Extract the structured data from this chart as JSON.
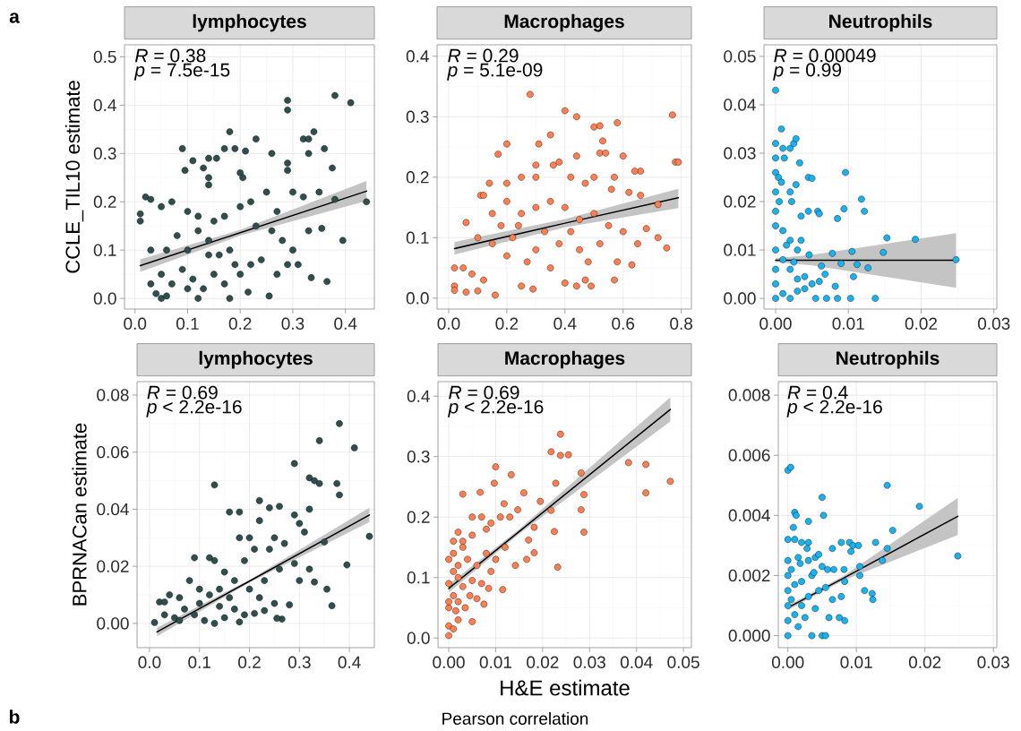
{
  "chart_data": [
    {
      "type": "scatter",
      "title": "lymphocytes",
      "ylabel": "CCLE_TIL10 estimate",
      "xlim": [
        -0.02,
        0.455
      ],
      "ylim": [
        -0.022,
        0.525
      ],
      "xticks": [
        {
          "value": 0,
          "label": "0.0"
        },
        {
          "value": 0.1,
          "label": "0.1"
        },
        {
          "value": 0.2,
          "label": "0.2"
        },
        {
          "value": 0.3,
          "label": "0.3"
        },
        {
          "value": 0.4,
          "label": "0.4"
        }
      ],
      "yticks": [
        {
          "value": 0,
          "label": "0.0"
        },
        {
          "value": 0.1,
          "label": "0.1"
        },
        {
          "value": 0.2,
          "label": "0.2"
        },
        {
          "value": 0.3,
          "label": "0.3"
        },
        {
          "value": 0.4,
          "label": "0.4"
        },
        {
          "value": 0.5,
          "label": "0.5"
        }
      ],
      "grid": true,
      "annotations": [
        "*R* = 0.38",
        "*p* = 7.5e-15",
        "a"
      ],
      "series": [
        {
          "type": "scatter",
          "color": "#2f4f4f",
          "marker": "circle",
          "x": [
            0.38,
            0.29,
            0.29,
            0.41,
            0.18,
            0.34,
            0.32,
            0.33,
            0.23,
            0.09,
            0.17,
            0.19,
            0.21,
            0.36,
            0.33,
            0.26,
            0.11,
            0.14,
            0.155,
            0.29,
            0.13,
            0.375,
            0.29,
            0.095,
            0.2,
            0.205,
            0.14,
            0.14,
            0.44,
            0.38,
            0.395,
            0.355,
            0.365,
            0.335,
            0.255,
            0.215,
            0.18,
            0.12,
            0.05,
            0.02,
            0.03,
            0.01,
            0.01,
            0.05,
            0.07,
            0.1,
            0.12,
            0.15,
            0.17,
            0.2,
            0.22,
            0.25,
            0.27,
            0.3,
            0.32,
            0.33,
            0.3,
            0.28,
            0.26,
            0.24,
            0.22,
            0.2,
            0.18,
            0.16,
            0.14,
            0.12,
            0.1,
            0.08,
            0.06,
            0.03,
            0.03,
            0.05,
            0.07,
            0.09,
            0.11,
            0.13,
            0.15,
            0.17,
            0.19,
            0.27,
            0.29,
            0.31,
            0.04,
            0.06,
            0.1,
            0.14,
            0.23,
            0.35
          ],
          "values": [
            0.42,
            0.41,
            0.39,
            0.405,
            0.345,
            0.345,
            0.33,
            0.33,
            0.33,
            0.31,
            0.31,
            0.31,
            0.305,
            0.31,
            0.3,
            0.3,
            0.285,
            0.29,
            0.29,
            0.28,
            0.27,
            0.27,
            0.265,
            0.265,
            0.26,
            0.25,
            0.25,
            0.235,
            0.2,
            0.205,
            0.12,
            0.145,
            0.035,
            0.043,
            0.005,
            0.013,
            0.0,
            0.0,
            0.0,
            0.21,
            0.205,
            0.175,
            0.16,
            0.19,
            0.2,
            0.18,
            0.17,
            0.16,
            0.17,
            0.19,
            0.2,
            0.22,
            0.18,
            0.22,
            0.21,
            0.14,
            0.1,
            0.12,
            0.14,
            0.08,
            0.07,
            0.05,
            0.1,
            0.09,
            0.12,
            0.14,
            0.1,
            0.13,
            0.1,
            0.1,
            0.03,
            0.05,
            0.03,
            0.06,
            0.04,
            0.02,
            0.05,
            0.03,
            0.07,
            0.05,
            0.07,
            0.07,
            0.01,
            0.005,
            0.02,
            0.09,
            0.15,
            0.22
          ]
        },
        {
          "type": "line",
          "color": "#000000",
          "line_style": "solid",
          "marker": "none",
          "x": [
            0.01,
            0.2,
            0.44
          ],
          "values": [
            0.068,
            0.136,
            0.222
          ],
          "lower": [
            0.055,
            0.13,
            0.202
          ],
          "upper": [
            0.081,
            0.142,
            0.243
          ]
        }
      ]
    },
    {
      "type": "scatter",
      "title": "Macrophages",
      "xlim": [
        -0.04,
        0.835
      ],
      "ylim": [
        -0.018,
        0.419
      ],
      "xticks": [
        {
          "value": 0,
          "label": "0.0"
        },
        {
          "value": 0.2,
          "label": "0.2"
        },
        {
          "value": 0.4,
          "label": "0.4"
        },
        {
          "value": 0.6,
          "label": "0.6"
        },
        {
          "value": 0.8,
          "label": "0.8"
        }
      ],
      "yticks": [
        {
          "value": 0,
          "label": "0.0"
        },
        {
          "value": 0.1,
          "label": "0.1"
        },
        {
          "value": 0.2,
          "label": "0.2"
        },
        {
          "value": 0.3,
          "label": "0.3"
        },
        {
          "value": 0.4,
          "label": "0.4"
        }
      ],
      "grid": true,
      "annotations": [
        "*R* = 0.29",
        "*p* = 5.1e-09"
      ],
      "series": [
        {
          "type": "scatter",
          "color": "#ff7f50",
          "marker": "circle",
          "x": [
            0.28,
            0.4,
            0.44,
            0.77,
            0.5,
            0.52,
            0.58,
            0.2,
            0.31,
            0.35,
            0.53,
            0.52,
            0.54,
            0.6,
            0.17,
            0.44,
            0.78,
            0.79,
            0.66,
            0.64,
            0.3,
            0.36,
            0.38,
            0.14,
            0.11,
            0.12,
            0.2,
            0.25,
            0.3,
            0.42,
            0.47,
            0.5,
            0.57,
            0.56,
            0.62,
            0.66,
            0.72,
            0.06,
            0.15,
            0.2,
            0.25,
            0.3,
            0.35,
            0.4,
            0.45,
            0.5,
            0.55,
            0.6,
            0.68,
            0.72,
            0.75,
            0.65,
            0.58,
            0.05,
            0.02,
            0.02,
            0.02,
            0.06,
            0.1,
            0.16,
            0.08,
            0.12,
            0.1,
            0.15,
            0.2,
            0.22,
            0.27,
            0.3,
            0.35,
            0.38,
            0.4,
            0.44,
            0.47,
            0.49,
            0.45,
            0.25,
            0.29,
            0.33,
            0.42,
            0.48,
            0.52,
            0.57,
            0.63,
            0.24,
            0.18
          ],
          "values": [
            0.337,
            0.31,
            0.3,
            0.303,
            0.283,
            0.285,
            0.29,
            0.255,
            0.255,
            0.27,
            0.26,
            0.24,
            0.24,
            0.235,
            0.238,
            0.235,
            0.225,
            0.225,
            0.21,
            0.21,
            0.22,
            0.22,
            0.225,
            0.19,
            0.17,
            0.17,
            0.19,
            0.2,
            0.2,
            0.2,
            0.19,
            0.2,
            0.2,
            0.18,
            0.175,
            0.17,
            0.155,
            0.125,
            0.14,
            0.16,
            0.14,
            0.15,
            0.16,
            0.15,
            0.13,
            0.14,
            0.12,
            0.11,
            0.115,
            0.1,
            0.083,
            0.09,
            0.06,
            0.05,
            0.05,
            0.02,
            0.013,
            0.01,
            0.012,
            0.005,
            0.04,
            0.03,
            0.1,
            0.09,
            0.07,
            0.1,
            0.06,
            0.08,
            0.05,
            0.09,
            0.025,
            0.02,
            0.03,
            0.02,
            0.08,
            0.02,
            0.015,
            0.11,
            0.11,
            0.06,
            0.09,
            0.03,
            0.055,
            0.12,
            0.12
          ]
        },
        {
          "type": "line",
          "color": "#000000",
          "line_style": "solid",
          "marker": "none",
          "x": [
            0.02,
            0.4,
            0.79
          ],
          "values": [
            0.082,
            0.124,
            0.166
          ],
          "lower": [
            0.072,
            0.117,
            0.149
          ],
          "upper": [
            0.093,
            0.131,
            0.181
          ]
        }
      ]
    },
    {
      "type": "scatter",
      "title": "Neutrophils",
      "xlim": [
        -0.0016,
        0.0304
      ],
      "ylim": [
        -0.0022,
        0.0524
      ],
      "xticks": [
        {
          "value": 0,
          "label": "0.00"
        },
        {
          "value": 0.01,
          "label": "0.01"
        },
        {
          "value": 0.02,
          "label": "0.02"
        },
        {
          "value": 0.03,
          "label": "0.03"
        }
      ],
      "yticks": [
        {
          "value": 0,
          "label": "0.00"
        },
        {
          "value": 0.01,
          "label": "0.01"
        },
        {
          "value": 0.02,
          "label": "0.02"
        },
        {
          "value": 0.03,
          "label": "0.03"
        },
        {
          "value": 0.04,
          "label": "0.04"
        },
        {
          "value": 0.05,
          "label": "0.05"
        }
      ],
      "grid": true,
      "annotations": [
        "*R* = 0.00049",
        "*p* = 0.99"
      ],
      "series": [
        {
          "type": "scatter",
          "color": "#1ab2ee",
          "marker": "circle",
          "x": [
            0.0,
            0.0008,
            0.0,
            0.001,
            0.002,
            0.0025,
            0.0028,
            0.0,
            0.0012,
            0.0,
            0.0004,
            0.0008,
            0.0033,
            0.0045,
            0.005,
            0.0096,
            0.0028,
            0.002,
            0.0,
            0.0005,
            0.0022,
            0.0,
            0.0035,
            0.0045,
            0.0058,
            0.006,
            0.0085,
            0.0094,
            0.0118,
            0.0122,
            0.0153,
            0.0192,
            0.0148,
            0.0105,
            0.0078,
            0.0063,
            0.009,
            0.0112,
            0.0127,
            0.0107,
            0.0068,
            0.0,
            0.001,
            0.002,
            0.003,
            0.0046,
            0.0,
            0.0,
            0.0,
            0.0,
            0.001,
            0.002,
            0.003,
            0.004,
            0.005,
            0.0055,
            0.007,
            0.0085,
            0.0082,
            0.0103,
            0.0137,
            0.0248,
            0.001,
            0.002,
            0.003,
            0.004,
            0.006,
            0.0015,
            0.0025,
            0.0035
          ],
          "values": [
            0.043,
            0.035,
            0.032,
            0.031,
            0.031,
            0.032,
            0.033,
            0.029,
            0.029,
            0.026,
            0.025,
            0.024,
            0.028,
            0.025,
            0.0248,
            0.026,
            0.0235,
            0.022,
            0.022,
            0.02,
            0.02,
            0.018,
            0.017,
            0.018,
            0.018,
            0.0175,
            0.0165,
            0.0185,
            0.0205,
            0.018,
            0.0125,
            0.0122,
            0.0095,
            0.0097,
            0.0093,
            0.0067,
            0.0072,
            0.007,
            0.0063,
            0.0045,
            0.005,
            0.015,
            0.014,
            0.012,
            0.01,
            0.009,
            0.01,
            0.006,
            0.003,
            0.0,
            0.008,
            0.006,
            0.004,
            0.002,
            0.003,
            0.0,
            0.0,
            0.0,
            0.0025,
            0.0,
            0.0,
            0.008,
            0.001,
            0.0,
            0.0015,
            0.0045,
            0.0035,
            0.011,
            0.0075,
            0.012
          ]
        },
        {
          "type": "line",
          "color": "#000000",
          "line_style": "solid",
          "marker": "none",
          "x": [
            0.0,
            0.005,
            0.0248
          ],
          "values": [
            0.0079,
            0.0079,
            0.0079
          ],
          "lower": [
            0.0075,
            0.0068,
            0.0022
          ],
          "upper": [
            0.0083,
            0.009,
            0.0135
          ]
        }
      ]
    },
    {
      "type": "scatter",
      "title": "lymphocytes",
      "ylabel": "BPRNACan estimate",
      "xlim": [
        -0.025,
        0.45
      ],
      "ylim": [
        -0.0085,
        0.0847
      ],
      "xticks": [
        {
          "value": 0,
          "label": "0.0"
        },
        {
          "value": 0.1,
          "label": "0.1"
        },
        {
          "value": 0.2,
          "label": "0.2"
        },
        {
          "value": 0.3,
          "label": "0.3"
        },
        {
          "value": 0.4,
          "label": "0.4"
        }
      ],
      "yticks": [
        {
          "value": 0,
          "label": "0.00"
        },
        {
          "value": 0.02,
          "label": "0.02"
        },
        {
          "value": 0.04,
          "label": "0.04"
        },
        {
          "value": 0.06,
          "label": "0.06"
        },
        {
          "value": 0.08,
          "label": "0.08"
        }
      ],
      "grid": true,
      "annotations": [
        "*R* = 0.69",
        "*p* < 2.2e-16"
      ],
      "series": [
        {
          "type": "scatter",
          "color": "#2f4f4f",
          "marker": "circle",
          "x": [
            0.38,
            0.34,
            0.41,
            0.29,
            0.32,
            0.33,
            0.34,
            0.375,
            0.38,
            0.13,
            0.22,
            0.26,
            0.24,
            0.32,
            0.16,
            0.18,
            0.29,
            0.3,
            0.22,
            0.44,
            0.35,
            0.18,
            0.2,
            0.25,
            0.31,
            0.27,
            0.24,
            0.21,
            0.19,
            0.09,
            0.12,
            0.13,
            0.395,
            0.29,
            0.32,
            0.3,
            0.33,
            0.355,
            0.365,
            0.265,
            0.255,
            0.28,
            0.25,
            0.22,
            0.2,
            0.23,
            0.26,
            0.17,
            0.15,
            0.14,
            0.12,
            0.1,
            0.08,
            0.06,
            0.04,
            0.02,
            0.03,
            0.01,
            0.03,
            0.05,
            0.07,
            0.09,
            0.11,
            0.13,
            0.15,
            0.17,
            0.19,
            0.21,
            0.23,
            0.1,
            0.14,
            0.16,
            0.18,
            0.06
          ],
          "values": [
            0.07,
            0.064,
            0.0615,
            0.056,
            0.051,
            0.05,
            0.049,
            0.049,
            0.045,
            0.0485,
            0.043,
            0.041,
            0.0405,
            0.04,
            0.039,
            0.039,
            0.038,
            0.035,
            0.036,
            0.0305,
            0.0285,
            0.03,
            0.03,
            0.03,
            0.032,
            0.028,
            0.026,
            0.026,
            0.022,
            0.023,
            0.023,
            0.022,
            0.0205,
            0.021,
            0.019,
            0.015,
            0.0145,
            0.012,
            0.0062,
            0.0015,
            0.0018,
            0.0065,
            0.007,
            0.009,
            0.012,
            0.015,
            0.019,
            0.015,
            0.018,
            0.012,
            0.01,
            0.012,
            0.015,
            0.009,
            0.01,
            0.0075,
            0.0075,
            0.0003,
            0.003,
            0.002,
            0.005,
            0.003,
            0.001,
            0.0,
            0.002,
            0.005,
            0.003,
            0.0035,
            0.0045,
            0.007,
            0.006,
            0.009,
            0.0005,
            0.001
          ]
        },
        {
          "type": "line",
          "color": "#000000",
          "line_style": "solid",
          "marker": "none",
          "x": [
            0.015,
            0.2,
            0.44
          ],
          "values": [
            -0.003,
            0.0148,
            0.038
          ],
          "lower": [
            -0.0045,
            0.0143,
            0.0355
          ],
          "upper": [
            -0.0015,
            0.0153,
            0.0405
          ]
        }
      ]
    },
    {
      "type": "scatter",
      "title": "Macrophages",
      "xlabel": "H&E estimate",
      "xlim": [
        -0.0023,
        0.0517
      ],
      "ylim": [
        -0.016,
        0.424
      ],
      "xticks": [
        {
          "value": 0,
          "label": "0.00"
        },
        {
          "value": 0.01,
          "label": "0.01"
        },
        {
          "value": 0.02,
          "label": "0.02"
        },
        {
          "value": 0.03,
          "label": "0.03"
        },
        {
          "value": 0.04,
          "label": "0.04"
        },
        {
          "value": 0.05,
          "label": "0.05"
        }
      ],
      "yticks": [
        {
          "value": 0,
          "label": "0.0"
        },
        {
          "value": 0.1,
          "label": "0.1"
        },
        {
          "value": 0.2,
          "label": "0.2"
        },
        {
          "value": 0.3,
          "label": "0.3"
        },
        {
          "value": 0.4,
          "label": "0.4"
        }
      ],
      "grid": true,
      "annotations": [
        "*R* = 0.69",
        "*p* < 2.2e-16",
        "b",
        "Pearson correlation"
      ],
      "series": [
        {
          "type": "scatter",
          "color": "#ff7f50",
          "marker": "circle",
          "x": [
            0.0238,
            0.0218,
            0.0238,
            0.0255,
            0.0383,
            0.042,
            0.0472,
            0.042,
            0.01,
            0.0133,
            0.0282,
            0.0228,
            0.0097,
            0.003,
            0.0067,
            0.016,
            0.0288,
            0.0195,
            0.0118,
            0.0147,
            0.0218,
            0.0282,
            0.0225,
            0.0288,
            0.0232,
            0.0182,
            0.017,
            0.0182,
            0.0166,
            0.0142,
            0.0115,
            0.0085,
            0.0075,
            0.005,
            0.0,
            0.0,
            0.001,
            0.002,
            0.0,
            0.001,
            0.002,
            0.0035,
            0.0045,
            0.006,
            0.0,
            0.001,
            0.002,
            0.003,
            0.005,
            0.007,
            0.009,
            0.0,
            0.001,
            0.002,
            0.004,
            0.006,
            0.008,
            0.01,
            0.012,
            0.001,
            0.002,
            0.003,
            0.005,
            0.007,
            0.009,
            0.011,
            0.013,
            0.005,
            0.008,
            0.003,
            0.0,
            0.0015
          ],
          "values": [
            0.337,
            0.308,
            0.302,
            0.303,
            0.29,
            0.287,
            0.259,
            0.24,
            0.283,
            0.27,
            0.273,
            0.256,
            0.256,
            0.238,
            0.241,
            0.24,
            0.237,
            0.226,
            0.222,
            0.212,
            0.211,
            0.212,
            0.176,
            0.175,
            0.117,
            0.183,
            0.162,
            0.141,
            0.13,
            0.12,
            0.08,
            0.082,
            0.056,
            0.027,
            0.004,
            0.02,
            0.015,
            0.03,
            0.05,
            0.07,
            0.06,
            0.05,
            0.07,
            0.065,
            0.09,
            0.11,
            0.1,
            0.085,
            0.095,
            0.09,
            0.11,
            0.13,
            0.14,
            0.12,
            0.13,
            0.12,
            0.14,
            0.13,
            0.15,
            0.16,
            0.175,
            0.16,
            0.17,
            0.2,
            0.19,
            0.2,
            0.2,
            0.2,
            0.18,
            0.15,
            0.06,
            0.045
          ]
        },
        {
          "type": "line",
          "color": "#000000",
          "line_style": "solid",
          "marker": "none",
          "x": [
            0.0,
            0.015,
            0.0472
          ],
          "values": [
            0.082,
            0.176,
            0.378
          ],
          "lower": [
            0.075,
            0.172,
            0.358
          ],
          "upper": [
            0.089,
            0.18,
            0.398
          ]
        }
      ]
    },
    {
      "type": "scatter",
      "title": "Neutrophils",
      "xlim": [
        -0.0014,
        0.0305
      ],
      "ylim": [
        -0.0004,
        0.00845
      ],
      "xticks": [
        {
          "value": 0,
          "label": "0.00"
        },
        {
          "value": 0.01,
          "label": "0.01"
        },
        {
          "value": 0.02,
          "label": "0.02"
        },
        {
          "value": 0.03,
          "label": "0.03"
        }
      ],
      "yticks": [
        {
          "value": 0,
          "label": "0.000"
        },
        {
          "value": 0.002,
          "label": "0.002"
        },
        {
          "value": 0.004,
          "label": "0.004"
        },
        {
          "value": 0.006,
          "label": "0.006"
        },
        {
          "value": 0.008,
          "label": "0.008"
        }
      ],
      "grid": true,
      "annotations": [
        "*R* = 0.4",
        "*p* < 2.2e-16"
      ],
      "series": [
        {
          "type": "scatter",
          "color": "#1ab2ee",
          "marker": "circle",
          "x": [
            0.0,
            0.0004,
            0.0145,
            0.005,
            0.0192,
            0.001,
            0.0012,
            0.0052,
            0.003,
            0.0008,
            0.0153,
            0.0,
            0.001,
            0.002,
            0.003,
            0.0028,
            0.0065,
            0.0078,
            0.009,
            0.0095,
            0.0103,
            0.0128,
            0.0145,
            0.0092,
            0.0248,
            0.0015,
            0.003,
            0.004,
            0.0045,
            0.005,
            0.0058,
            0.0067,
            0.0082,
            0.0105,
            0.0105,
            0.0138,
            0.0112,
            0.0123,
            0.0124,
            0.0083,
            0.0078,
            0.0065,
            0.0083,
            0.006,
            0.0075,
            0.0035,
            0.005,
            0.0055,
            0.0,
            0.0,
            0.0,
            0.0,
            0.0,
            0.0005,
            0.0005,
            0.001,
            0.001,
            0.0015,
            0.002,
            0.002,
            0.0025,
            0.003,
            0.0035,
            0.004,
            0.0045,
            0.0055,
            0.0,
            0.0018,
            0.0038
          ],
          "values": [
            0.0055,
            0.0056,
            0.005,
            0.0046,
            0.0043,
            0.0041,
            0.004,
            0.004,
            0.0038,
            0.0036,
            0.0035,
            0.0032,
            0.0032,
            0.0031,
            0.0031,
            0.0029,
            0.0029,
            0.0031,
            0.0031,
            0.003,
            0.003,
            0.0031,
            0.0029,
            0.0028,
            0.00265,
            0.0026,
            0.0025,
            0.0026,
            0.0027,
            0.0023,
            0.0022,
            0.0022,
            0.0022,
            0.0023,
            0.002,
            0.0025,
            0.0015,
            0.0014,
            0.0012,
            0.0018,
            0.0013,
            0.0012,
            0.0005,
            0.0006,
            0.0006,
            0.0,
            0.0,
            0.0,
            0.0,
            0.0005,
            0.001,
            0.0015,
            0.002,
            0.0022,
            0.0012,
            0.0017,
            0.0007,
            0.0003,
            0.001,
            0.0018,
            0.0006,
            0.0013,
            0.002,
            0.0009,
            0.0015,
            0.0016,
            0.0025,
            0.0024,
            0.0021
          ]
        },
        {
          "type": "line",
          "color": "#000000",
          "line_style": "solid",
          "marker": "none",
          "x": [
            0.0,
            0.008,
            0.0248
          ],
          "values": [
            0.00093,
            0.0019,
            0.00397
          ],
          "lower": [
            0.00085,
            0.00183,
            0.00335
          ],
          "upper": [
            0.001,
            0.00197,
            0.00458
          ]
        }
      ]
    }
  ]
}
